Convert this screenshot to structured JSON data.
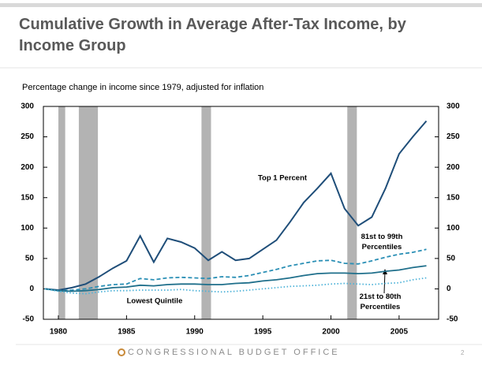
{
  "chart_data": {
    "type": "line",
    "title": "Cumulative Growth in Average After-Tax Income, by Income Group",
    "subtitle": "Percentage change in income since 1979, adjusted for inflation",
    "x": [
      1979,
      1980,
      1981,
      1982,
      1983,
      1984,
      1985,
      1986,
      1987,
      1988,
      1989,
      1990,
      1991,
      1992,
      1993,
      1994,
      1995,
      1996,
      1997,
      1998,
      1999,
      2000,
      2001,
      2002,
      2003,
      2004,
      2005,
      2006,
      2007
    ],
    "series": [
      {
        "name": "Top 1 Percent",
        "color": "#1f4e79",
        "dash": "solid",
        "values": [
          0,
          -2,
          2,
          8,
          20,
          34,
          46,
          87,
          44,
          83,
          77,
          67,
          47,
          61,
          47,
          50,
          65,
          80,
          110,
          142,
          165,
          190,
          132,
          104,
          118,
          165,
          222,
          250,
          276
        ]
      },
      {
        "name": "81st to 99th Percentiles",
        "color": "#2a8fb5",
        "dash": "dashed",
        "values": [
          0,
          -3,
          -2,
          0,
          4,
          7,
          8,
          17,
          15,
          18,
          19,
          18,
          17,
          20,
          19,
          22,
          27,
          32,
          38,
          42,
          46,
          47,
          42,
          41,
          46,
          52,
          57,
          60,
          65
        ]
      },
      {
        "name": "21st to 80th Percentiles",
        "color": "#1f6f8b",
        "dash": "solid",
        "values": [
          0,
          -3,
          -4,
          -3,
          -1,
          2,
          3,
          6,
          5,
          7,
          8,
          8,
          7,
          7,
          9,
          10,
          13,
          15,
          18,
          22,
          25,
          26,
          26,
          25,
          26,
          29,
          31,
          35,
          38
        ]
      },
      {
        "name": "Lowest Quintile",
        "color": "#4fb3d9",
        "dash": "dotted",
        "values": [
          0,
          -4,
          -7,
          -8,
          -5,
          -3,
          -3,
          -2,
          -2,
          -2,
          -1,
          -3,
          -4,
          -5,
          -4,
          -2,
          0,
          2,
          4,
          5,
          6,
          8,
          9,
          8,
          7,
          9,
          10,
          15,
          18
        ]
      }
    ],
    "recessions": [
      [
        1980.0,
        1980.5
      ],
      [
        1981.5,
        1982.9
      ],
      [
        1990.5,
        1991.2
      ],
      [
        2001.2,
        2001.9
      ]
    ],
    "xlim": [
      1978.9,
      2007.9
    ],
    "xticks": [
      1980,
      1985,
      1990,
      1995,
      2000,
      2005
    ],
    "ylim": [
      -50,
      300
    ],
    "yticks": [
      -50,
      0,
      50,
      100,
      150,
      200,
      250,
      300
    ],
    "footer": "CONGRESSIONAL BUDGET OFFICE",
    "page_number": "2"
  }
}
